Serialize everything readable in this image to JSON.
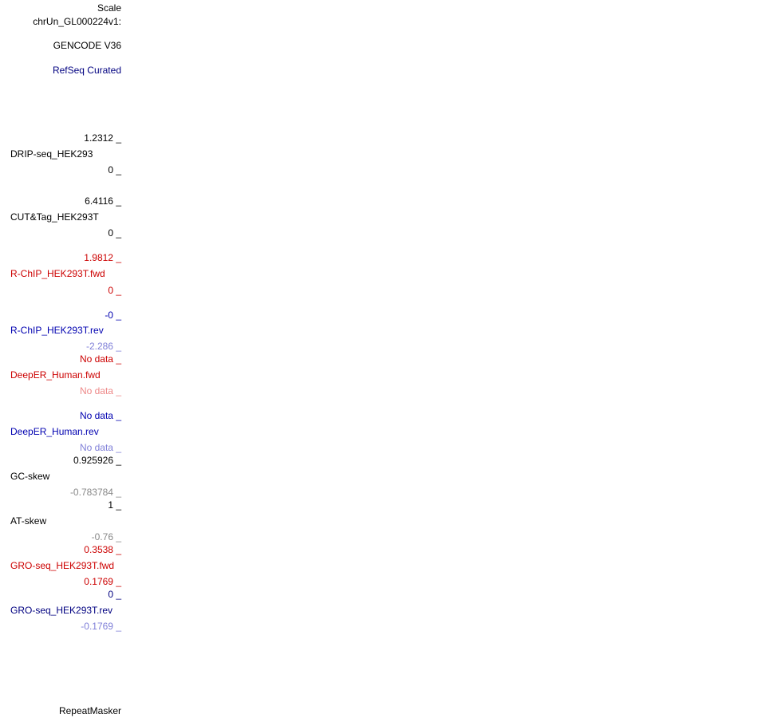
{
  "labels": [
    "Scale",
    "chrUn_GL000224v1:",
    "GENCODE V36",
    "RefSeq Curated",
    "1.2312 _",
    "DRIP-seq_HEK293",
    "0 _",
    "6.4116 _",
    "CUT&Tag_HEK293T",
    "0 _",
    "1.9812 _",
    "R-ChIP_HEK293T.fwd",
    "0 _",
    "-0 _",
    "R-ChIP_HEK293T.rev",
    "-2.286 _",
    "No data _",
    "DeepER_Human.fwd",
    "No data _",
    "No data _",
    "DeepER_Human.rev",
    "No data _",
    "0.925926 _",
    "GC-skew",
    "-0.783784 _",
    "1 _",
    "AT-skew",
    "-0.76 _",
    "0.3538 _",
    "GRO-seq_HEK293T.fwd",
    "0.1769 _",
    "0 _",
    "GRO-seq_HEK293T.rev",
    "-0.1769 _",
    "RepeatMasker"
  ]
}
